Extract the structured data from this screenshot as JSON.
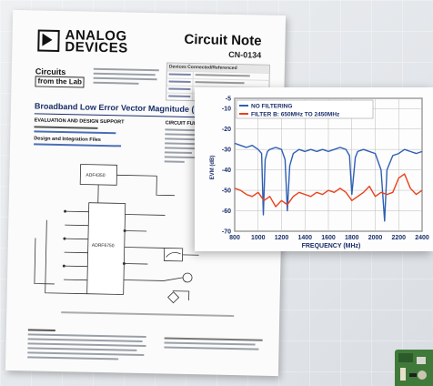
{
  "document": {
    "brand_line1": "ANALOG",
    "brand_line2": "DEVICES",
    "note_title": "Circuit Note",
    "note_number": "CN-0134",
    "cft_line1": "Circuits",
    "cft_line2": "from the Lab",
    "table_header": "Devices Connected/Referenced",
    "heading": "Broadband Low Error Vector Magnitude (EVM) Direct",
    "section_eval": "EVALUATION AND DESIGN SUPPORT",
    "section_func": "CIRCUIT FUNCT",
    "section_design": "Design and Integration Files",
    "chip_label_top": "ADF4350",
    "chip_label_main": "ADRF6750"
  },
  "chart_data": {
    "type": "line",
    "xlabel": "FREQUENCY (MHz)",
    "ylabel": "EVM (dB)",
    "xlim": [
      800,
      2400
    ],
    "ylim": [
      -70,
      -5
    ],
    "x_ticks": [
      800,
      1000,
      1200,
      1400,
      1600,
      1800,
      2000,
      2200,
      2400
    ],
    "y_ticks": [
      -5,
      -10,
      -20,
      -30,
      -40,
      -50,
      -60,
      -70
    ],
    "grid": true,
    "legend": "top-left",
    "series": [
      {
        "name": "NO FILTERING",
        "color": "#2f5fb3",
        "x": [
          800,
          850,
          900,
          950,
          1000,
          1030,
          1045,
          1060,
          1080,
          1100,
          1150,
          1200,
          1230,
          1250,
          1270,
          1300,
          1350,
          1400,
          1450,
          1500,
          1550,
          1600,
          1650,
          1700,
          1750,
          1780,
          1800,
          1830,
          1850,
          1900,
          1950,
          2000,
          2050,
          2080,
          2100,
          2150,
          2200,
          2250,
          2300,
          2350,
          2400
        ],
        "y": [
          -27,
          -28,
          -29,
          -28,
          -30,
          -32,
          -62,
          -35,
          -31,
          -30,
          -29,
          -30,
          -35,
          -60,
          -38,
          -32,
          -30,
          -31,
          -30,
          -31,
          -30,
          -31,
          -30,
          -29,
          -30,
          -33,
          -52,
          -34,
          -31,
          -30,
          -31,
          -32,
          -40,
          -65,
          -40,
          -33,
          -32,
          -30,
          -31,
          -32,
          -31
        ]
      },
      {
        "name": "FILTER B: 650MHz TO 2450MHz",
        "color": "#e8421d",
        "x": [
          800,
          850,
          900,
          950,
          1000,
          1050,
          1100,
          1150,
          1200,
          1250,
          1300,
          1350,
          1400,
          1450,
          1500,
          1550,
          1600,
          1650,
          1700,
          1750,
          1800,
          1850,
          1900,
          1950,
          2000,
          2050,
          2100,
          2150,
          2200,
          2250,
          2300,
          2350,
          2400
        ],
        "y": [
          -49,
          -50,
          -52,
          -53,
          -51,
          -55,
          -53,
          -58,
          -55,
          -57,
          -53,
          -51,
          -52,
          -53,
          -51,
          -52,
          -50,
          -51,
          -49,
          -51,
          -55,
          -53,
          -51,
          -48,
          -53,
          -51,
          -52,
          -51,
          -44,
          -42,
          -49,
          -52,
          -50
        ]
      }
    ]
  }
}
